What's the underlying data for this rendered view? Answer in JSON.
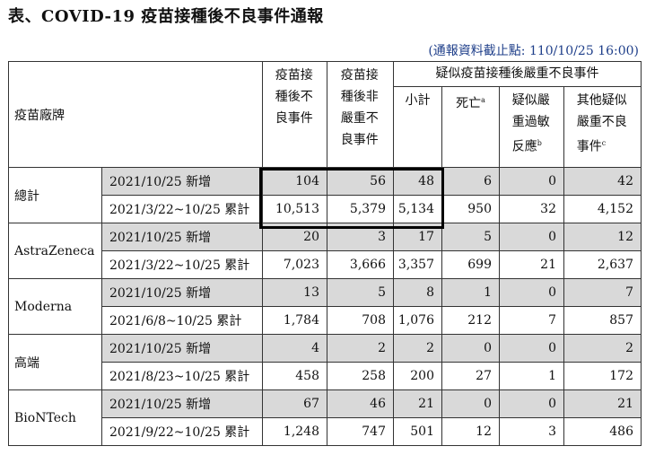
{
  "title": "表、COVID-19 疫苗接種後不良事件通報",
  "note": "(通報資料截止點: 110/10/25 16:00)",
  "headers": {
    "brand": "疫苗廠牌",
    "col_ae": "疫苗接種後不良事件",
    "col_nonserious": "疫苗接種後非嚴重不良事件",
    "col_serious_group": "疑似疫苗接種後嚴重不良事件",
    "col_subtotal": "小計",
    "col_death": "死亡",
    "col_death_sup": "a",
    "col_anaphylaxis": "疑似嚴重過敏反應",
    "col_anaphylaxis_sup": "b",
    "col_other": "其他疑似嚴重不良事件",
    "col_other_sup": "c"
  },
  "groups": [
    {
      "brand": "總計",
      "rows": [
        {
          "period": "2021/10/25 新增",
          "ae": "104",
          "nonserious": "56",
          "subtotal": "48",
          "death": "6",
          "anaphylaxis": "0",
          "other": "42"
        },
        {
          "period": "2021/3/22~10/25 累計",
          "ae": "10,513",
          "nonserious": "5,379",
          "subtotal": "5,134",
          "death": "950",
          "anaphylaxis": "32",
          "other": "4,152"
        }
      ]
    },
    {
      "brand": "AstraZeneca",
      "rows": [
        {
          "period": "2021/10/25 新增",
          "ae": "20",
          "nonserious": "3",
          "subtotal": "17",
          "death": "5",
          "anaphylaxis": "0",
          "other": "12"
        },
        {
          "period": "2021/3/22~10/25 累計",
          "ae": "7,023",
          "nonserious": "3,666",
          "subtotal": "3,357",
          "death": "699",
          "anaphylaxis": "21",
          "other": "2,637"
        }
      ]
    },
    {
      "brand": "Moderna",
      "rows": [
        {
          "period": "2021/10/25 新增",
          "ae": "13",
          "nonserious": "5",
          "subtotal": "8",
          "death": "1",
          "anaphylaxis": "0",
          "other": "7"
        },
        {
          "period": "2021/6/8~10/25 累計",
          "ae": "1,784",
          "nonserious": "708",
          "subtotal": "1,076",
          "death": "212",
          "anaphylaxis": "7",
          "other": "857"
        }
      ]
    },
    {
      "brand": "高端",
      "rows": [
        {
          "period": "2021/10/25 新增",
          "ae": "4",
          "nonserious": "2",
          "subtotal": "2",
          "death": "0",
          "anaphylaxis": "0",
          "other": "2"
        },
        {
          "period": "2021/8/23~10/25 累計",
          "ae": "458",
          "nonserious": "258",
          "subtotal": "200",
          "death": "27",
          "anaphylaxis": "1",
          "other": "172"
        }
      ]
    },
    {
      "brand": "BioNTech",
      "rows": [
        {
          "period": "2021/10/25 新增",
          "ae": "67",
          "nonserious": "46",
          "subtotal": "21",
          "death": "0",
          "anaphylaxis": "0",
          "other": "21"
        },
        {
          "period": "2021/9/22~10/25 累計",
          "ae": "1,248",
          "nonserious": "747",
          "subtotal": "501",
          "death": "12",
          "anaphylaxis": "3",
          "other": "486"
        }
      ]
    }
  ],
  "colors": {
    "shade": "#d9d9d9",
    "note": "#1f3f8a"
  }
}
